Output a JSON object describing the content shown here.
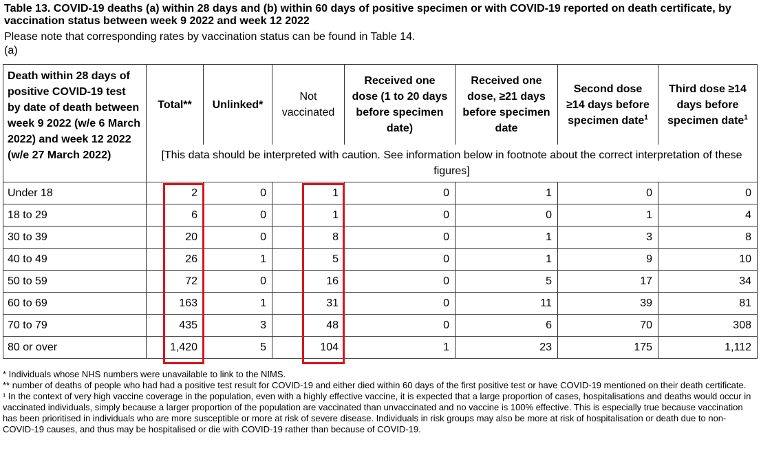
{
  "title": "Table 13. COVID-19 deaths (a) within 28 days and (b) within 60 days of positive specimen or with COVID-19 reported on death certificate, by vaccination status between week 9 2022 and week 12 2022",
  "note": "Please note that corresponding rates by vaccination status can be found in Table 14.",
  "section": "(a)",
  "table": {
    "header_first": "Death within 28 days of positive COVID-19 test by date of death between week 9 2022 (w/e 6 March 2022) and week 12 2022 (w/e 27 March 2022)",
    "headers": [
      {
        "text": "Total**",
        "sup": ""
      },
      {
        "text": "Unlinked*",
        "sup": ""
      },
      {
        "text": "Not vaccinated",
        "sup": ""
      },
      {
        "text": "Received one dose (1 to 20 days before specimen date)",
        "sup": ""
      },
      {
        "text": "Received one dose, ≥21 days before specimen date",
        "sup": ""
      },
      {
        "text": "Second dose ≥14 days before specimen date",
        "sup": "1"
      },
      {
        "text": "Third dose ≥14 days before specimen date",
        "sup": "1"
      }
    ],
    "caution": "[This data should be interpreted with caution. See information below in footnote about the correct interpretation of these figures]",
    "rows": [
      {
        "age": "Under 18",
        "values": [
          "2",
          "0",
          "1",
          "0",
          "1",
          "0",
          "0"
        ]
      },
      {
        "age": "18 to 29",
        "values": [
          "6",
          "0",
          "1",
          "0",
          "0",
          "1",
          "4"
        ]
      },
      {
        "age": "30 to 39",
        "values": [
          "20",
          "0",
          "8",
          "0",
          "1",
          "3",
          "8"
        ]
      },
      {
        "age": "40 to 49",
        "values": [
          "26",
          "1",
          "5",
          "0",
          "1",
          "9",
          "10"
        ]
      },
      {
        "age": "50 to 59",
        "values": [
          "72",
          "0",
          "16",
          "0",
          "5",
          "17",
          "34"
        ]
      },
      {
        "age": "60 to 69",
        "values": [
          "163",
          "1",
          "31",
          "0",
          "11",
          "39",
          "81"
        ]
      },
      {
        "age": "70 to 79",
        "values": [
          "435",
          "3",
          "48",
          "0",
          "6",
          "70",
          "308"
        ]
      },
      {
        "age": "80 or over",
        "values": [
          "1,420",
          "5",
          "104",
          "1",
          "23",
          "175",
          "1,112"
        ]
      }
    ]
  },
  "highlight_color": "#d7141f",
  "footnotes": [
    "* Individuals whose NHS numbers were unavailable to link to the NIMS.",
    "** number of deaths of people who had had a positive test result for COVID-19 and either died within 60 days of the first positive test or have COVID-19 mentioned on their death certificate.",
    "¹ In the context of very high vaccine coverage in the population, even with a highly effective vaccine, it is expected that a large proportion of cases, hospitalisations and deaths would occur in vaccinated individuals, simply because a larger proportion of the population are vaccinated than unvaccinated and no vaccine is 100% effective. This is especially true because vaccination has been prioritised in individuals who are more susceptible or more at risk of severe disease. Individuals in risk groups may also be more at risk of hospitalisation or death due to non-COVID-19 causes, and thus may be hospitalised or die with COVID-19 rather than because of COVID-19."
  ]
}
